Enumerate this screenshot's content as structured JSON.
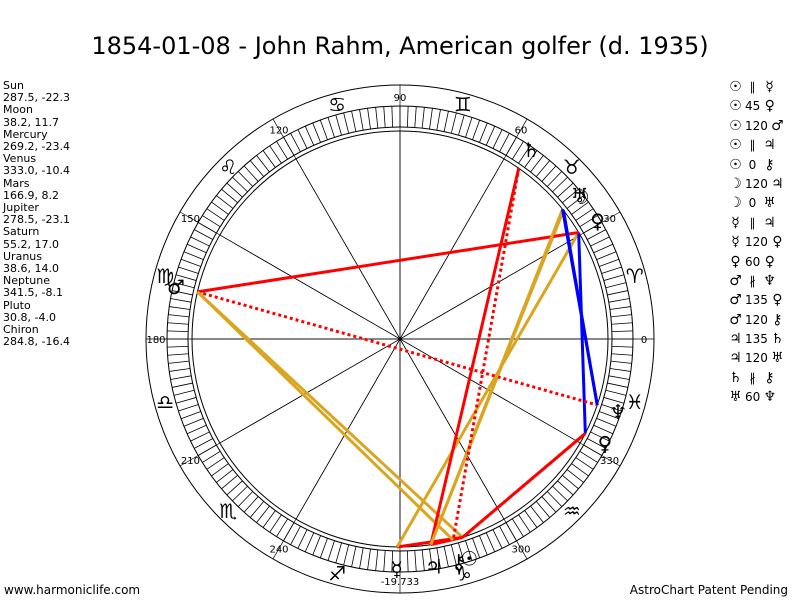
{
  "title": "1854-01-08 - John Rahm, American golfer (d. 1935)",
  "footer": {
    "left": "www.harmoniclife.com",
    "right": "AstroChart Patent Pending"
  },
  "chart_data": {
    "type": "astrological-wheel",
    "degree_labels": [
      "0",
      "30",
      "60",
      "90",
      "120",
      "150",
      "180",
      "210",
      "240",
      "-19.733",
      "300",
      "330"
    ],
    "planets": [
      {
        "name": "Sun",
        "glyph": "☉",
        "lon": 287.5,
        "lat": -22.3
      },
      {
        "name": "Moon",
        "glyph": "☽",
        "lon": 38.2,
        "lat": 11.7
      },
      {
        "name": "Mercury",
        "glyph": "☿",
        "lon": 269.2,
        "lat": -23.4
      },
      {
        "name": "Venus",
        "glyph": "♀",
        "lon": 333.0,
        "lat": -10.4
      },
      {
        "name": "Mars",
        "glyph": "♂",
        "lon": 166.9,
        "lat": 8.2
      },
      {
        "name": "Jupiter",
        "glyph": "♃",
        "lon": 278.5,
        "lat": -23.1
      },
      {
        "name": "Saturn",
        "glyph": "♄",
        "lon": 55.2,
        "lat": 17.0
      },
      {
        "name": "Uranus",
        "glyph": "♅",
        "lon": 38.6,
        "lat": 14.0
      },
      {
        "name": "Neptune",
        "glyph": "♆",
        "lon": 341.5,
        "lat": -8.1
      },
      {
        "name": "Pluto",
        "glyph": "♀",
        "lon": 30.8,
        "lat": -4.0
      },
      {
        "name": "Chiron",
        "glyph": "⚷",
        "lon": 284.8,
        "lat": -16.4
      }
    ],
    "signs": [
      "♈",
      "♉",
      "♊",
      "♋",
      "♌",
      "♍",
      "♎",
      "♏",
      "♐",
      "♑",
      "♒",
      "♓"
    ],
    "aspects": [
      {
        "a": "☉",
        "sym": "∥",
        "b": "☿",
        "color": "#ff0000",
        "style": "solid"
      },
      {
        "a": "☉",
        "sym": "45",
        "b": "♀",
        "color": "#ff0000",
        "style": "dotted"
      },
      {
        "a": "☉",
        "sym": "120",
        "b": "♂",
        "color": "#daa520",
        "style": "solid"
      },
      {
        "a": "☉",
        "sym": "∥",
        "b": "♃",
        "color": "#ff0000",
        "style": "solid"
      },
      {
        "a": "☉",
        "sym": "0",
        "b": "⚷",
        "color": "#ff0000",
        "style": "solid"
      },
      {
        "a": "☽",
        "sym": "120",
        "b": "♃",
        "color": "#daa520",
        "style": "solid"
      },
      {
        "a": "☽",
        "sym": "0",
        "b": "♅",
        "color": "#ff0000",
        "style": "solid"
      },
      {
        "a": "☿",
        "sym": "∥",
        "b": "♃",
        "color": "#ff0000",
        "style": "solid"
      },
      {
        "a": "☿",
        "sym": "120",
        "b": "♀",
        "color": "#daa520",
        "style": "solid"
      },
      {
        "a": "♀",
        "sym": "60",
        "b": "♀",
        "color": "#0000ff",
        "style": "solid"
      },
      {
        "a": "♂",
        "sym": "∦",
        "b": "♆",
        "color": "#ff0000",
        "style": "dotted"
      },
      {
        "a": "♂",
        "sym": "135",
        "b": "♀",
        "color": "#ff0000",
        "style": "solid"
      },
      {
        "a": "♂",
        "sym": "120",
        "b": "⚷",
        "color": "#daa520",
        "style": "solid"
      },
      {
        "a": "♃",
        "sym": "135",
        "b": "♄",
        "color": "#ff0000",
        "style": "solid"
      },
      {
        "a": "♃",
        "sym": "120",
        "b": "♅",
        "color": "#daa520",
        "style": "solid"
      },
      {
        "a": "♄",
        "sym": "∦",
        "b": "⚷",
        "color": "#ff0000",
        "style": "dotted"
      },
      {
        "a": "♅",
        "sym": "60",
        "b": "♆",
        "color": "#0000ff",
        "style": "solid"
      }
    ]
  }
}
